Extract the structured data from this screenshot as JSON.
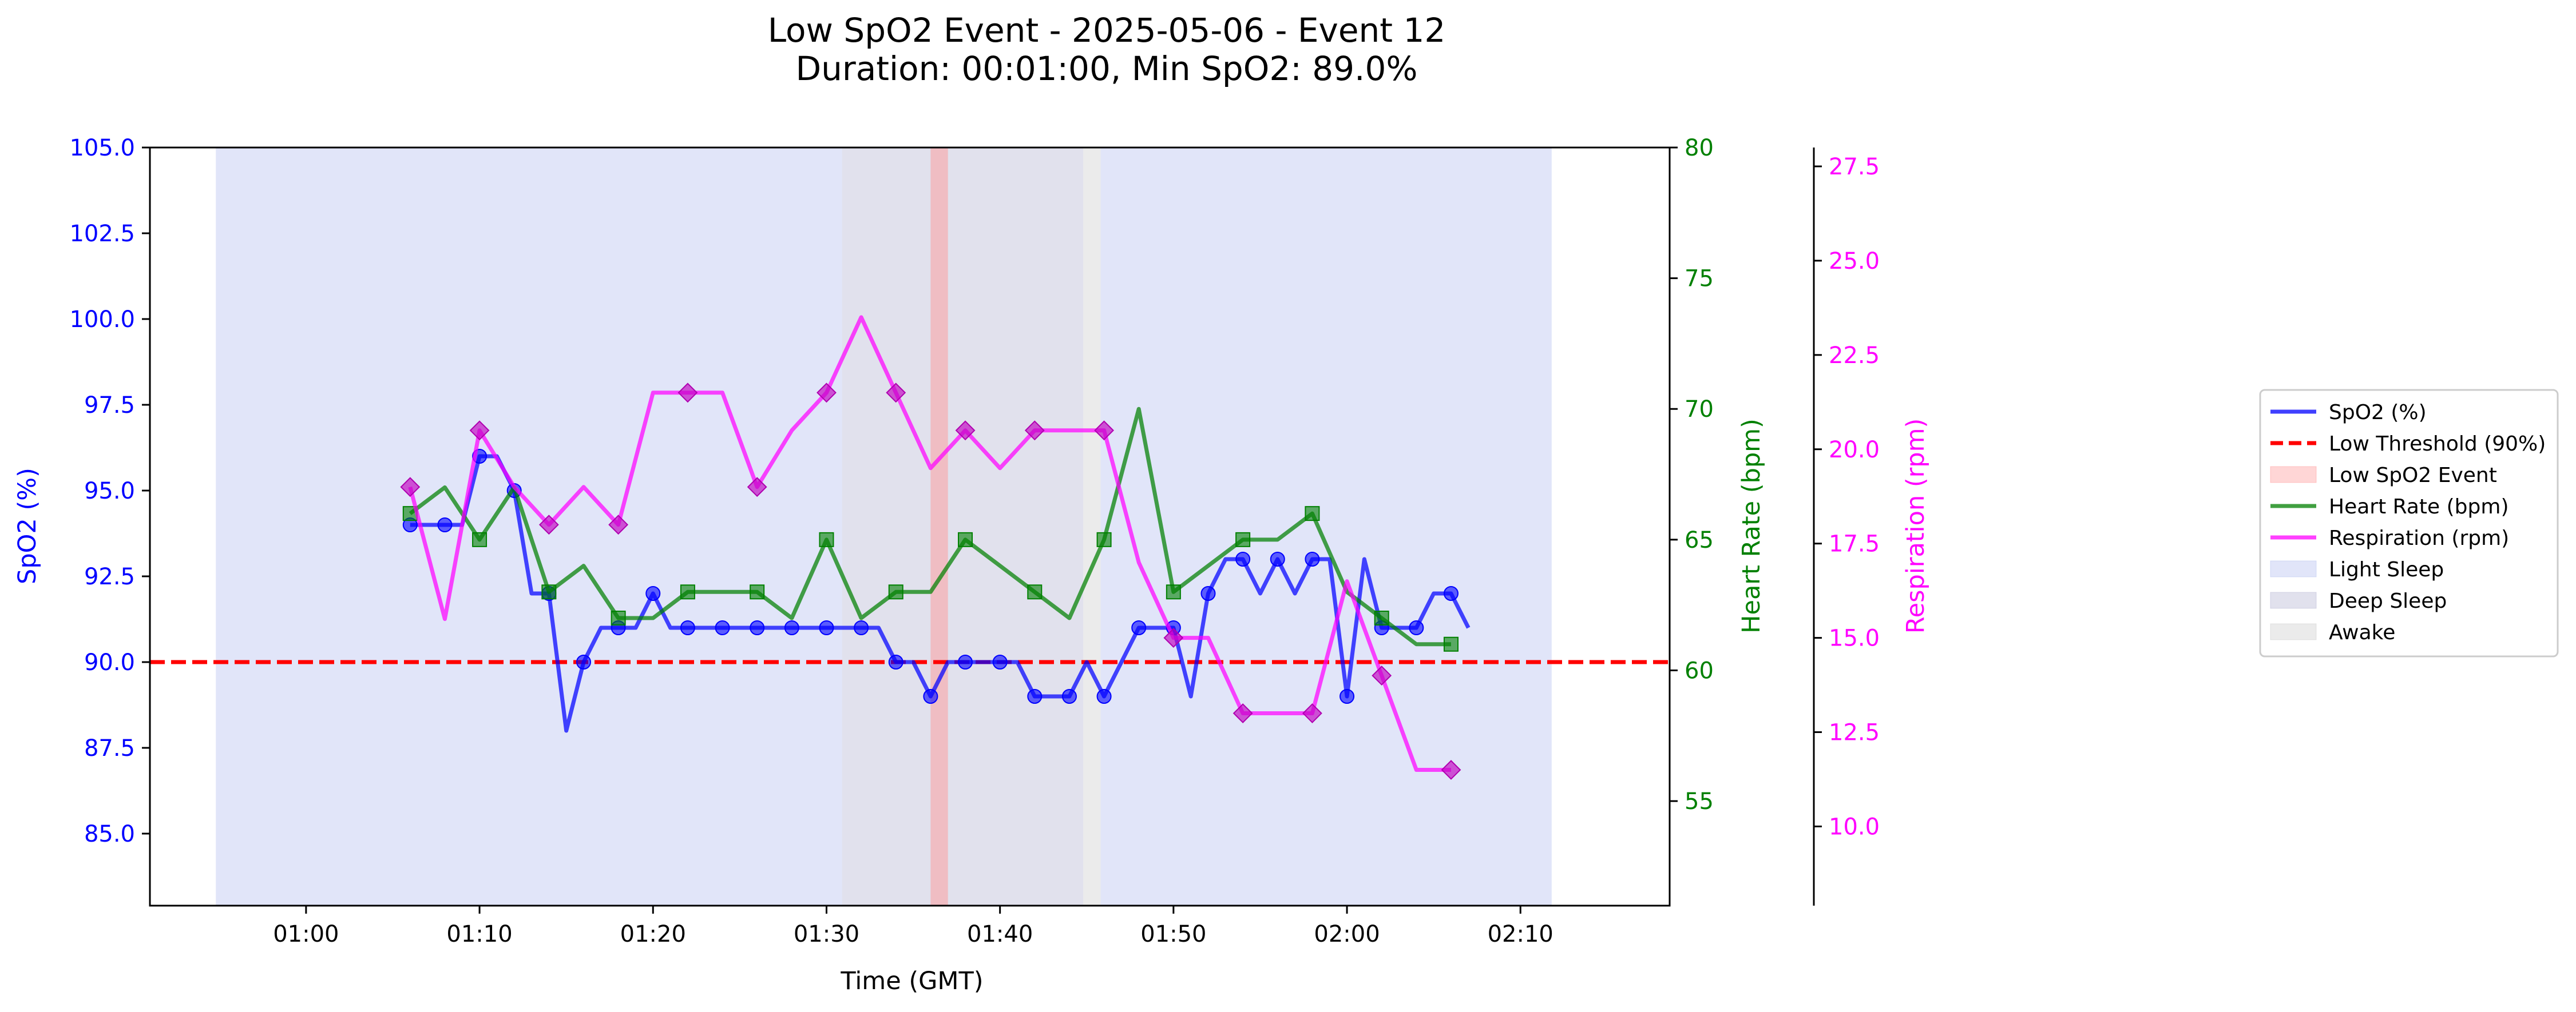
{
  "chart_data": {
    "type": "line",
    "title": "Low SpO2 Event - 2025-05-06 - Event 12",
    "subtitle": "Duration: 00:01:00, Min SpO2: 89.0%",
    "xlabel": "Time (GMT)",
    "x_ticks": [
      "01:00",
      "01:10",
      "01:20",
      "01:30",
      "01:40",
      "01:50",
      "02:00",
      "02:10"
    ],
    "x_tick_minutes": [
      60,
      70,
      80,
      90,
      100,
      110,
      120,
      130
    ],
    "xlim_minutes": [
      51,
      138.6
    ],
    "axes": {
      "spo2": {
        "label": "SpO2 (%)",
        "color": "#0000ff",
        "ylim": [
          82.9,
          105
        ],
        "ticks": [
          85.0,
          87.5,
          90.0,
          92.5,
          95.0,
          97.5,
          100.0,
          102.5,
          105.0
        ],
        "tick_labels": [
          "85.0",
          "87.5",
          "90.0",
          "92.5",
          "95.0",
          "97.5",
          "100.0",
          "102.5",
          "105.0"
        ]
      },
      "heart_rate": {
        "label": "Heart Rate (bpm)",
        "color": "#008000",
        "ylim": [
          51,
          80
        ],
        "ticks": [
          55,
          60,
          65,
          70,
          75,
          80
        ],
        "tick_labels": [
          "55",
          "60",
          "65",
          "70",
          "75",
          "80"
        ]
      },
      "respiration": {
        "label": "Respiration (rpm)",
        "color": "#ff00ff",
        "ylim": [
          7.9,
          28.0
        ],
        "ticks": [
          10.0,
          12.5,
          15.0,
          17.5,
          20.0,
          22.5,
          25.0,
          27.5
        ],
        "tick_labels": [
          "10.0",
          "12.5",
          "15.0",
          "17.5",
          "20.0",
          "22.5",
          "25.0",
          "27.5"
        ]
      }
    },
    "series": [
      {
        "key": "spo2",
        "name": "SpO2 (%)",
        "axis": "spo2",
        "color": "#0000ff",
        "x": [
          66,
          67,
          68,
          69,
          70,
          71,
          72,
          73,
          74,
          75,
          76,
          77,
          78,
          79,
          80,
          81,
          82,
          83,
          84,
          85,
          86,
          87,
          88,
          89,
          90,
          91,
          92,
          93,
          94,
          95,
          96,
          97,
          98,
          99,
          100,
          101,
          102,
          103,
          104,
          105,
          106,
          107,
          108,
          109,
          110,
          111,
          112,
          113,
          114,
          115,
          116,
          117,
          118,
          119,
          120,
          121,
          122,
          123,
          124,
          125,
          126,
          127
        ],
        "y": [
          94,
          94,
          94,
          94,
          96,
          96,
          95,
          92,
          92,
          88,
          90,
          91,
          91,
          91,
          92,
          91,
          91,
          91,
          91,
          91,
          91,
          91,
          91,
          91,
          91,
          91,
          91,
          91,
          90,
          90,
          89,
          90,
          90,
          90,
          90,
          90,
          89,
          89,
          89,
          90,
          89,
          90,
          91,
          91,
          91,
          89,
          92,
          93,
          93,
          92,
          93,
          92,
          93,
          93,
          89,
          93,
          91,
          91,
          91,
          92,
          92,
          91
        ],
        "markers_x": [
          66,
          68,
          70,
          72,
          74,
          76,
          78,
          80,
          82,
          84,
          86,
          88,
          90,
          92,
          94,
          96,
          98,
          100,
          102,
          104,
          106,
          108,
          110,
          112,
          114,
          116,
          118,
          120,
          122,
          124,
          126
        ]
      },
      {
        "key": "heart_rate",
        "name": "Heart Rate (bpm)",
        "axis": "heart_rate",
        "color": "#008000",
        "x": [
          66,
          68,
          70,
          72,
          74,
          76,
          78,
          80,
          82,
          84,
          86,
          88,
          90,
          92,
          94,
          96,
          98,
          100,
          102,
          104,
          106,
          108,
          110,
          112,
          114,
          116,
          118,
          120,
          122,
          124,
          126
        ],
        "y": [
          66,
          67,
          65,
          67,
          63,
          64,
          62,
          62,
          63,
          63,
          63,
          62,
          65,
          62,
          63,
          63,
          65,
          64,
          63,
          62,
          65,
          70,
          63,
          64,
          65,
          65,
          66,
          63,
          62,
          61,
          61
        ],
        "markers_x": [
          66,
          70,
          74,
          78,
          82,
          86,
          90,
          94,
          98,
          102,
          106,
          110,
          114,
          118,
          122,
          126
        ]
      },
      {
        "key": "respiration",
        "name": "Respiration (rpm)",
        "axis": "respiration",
        "color": "#ff00ff",
        "x": [
          66,
          68,
          70,
          72,
          74,
          76,
          78,
          80,
          82,
          84,
          86,
          88,
          90,
          92,
          94,
          96,
          98,
          100,
          102,
          104,
          106,
          108,
          110,
          112,
          114,
          116,
          118,
          120,
          122,
          124,
          126
        ],
        "y": [
          19,
          15.5,
          20.5,
          19,
          18,
          19,
          18,
          21.5,
          21.5,
          21.5,
          19,
          20.5,
          21.5,
          23.5,
          21.5,
          19.5,
          20.5,
          19.5,
          20.5,
          20.5,
          20.5,
          17,
          15,
          15,
          13,
          13,
          13,
          16.5,
          14,
          11.5,
          11.5
        ],
        "markers_x": [
          66,
          70,
          74,
          78,
          82,
          86,
          90,
          94,
          98,
          102,
          106,
          110,
          114,
          118,
          122,
          126
        ]
      }
    ],
    "threshold": {
      "name": "Low Threshold (90%)",
      "axis": "spo2",
      "value": 90,
      "color": "#ff0000"
    },
    "event_span": {
      "name": "Low SpO2 Event",
      "x_start": 96,
      "x_end": 97,
      "color": "#ff9999"
    },
    "sleep_stages": [
      {
        "stage": "Light Sleep",
        "x_start": 54.8,
        "x_end": 90.9
      },
      {
        "stage": "Deep Sleep",
        "x_start": 90.9,
        "x_end": 104.8
      },
      {
        "stage": "Awake",
        "x_start": 104.8,
        "x_end": 105.8
      },
      {
        "stage": "Light Sleep",
        "x_start": 105.8,
        "x_end": 131.8
      }
    ],
    "stage_colors": {
      "Light Sleep": "#b3bff0",
      "Deep Sleep": "#b3b3d1",
      "Awake": "#cccccc"
    },
    "legend": {
      "placement": "right",
      "entries": [
        {
          "label": "SpO2 (%)",
          "kind": "line",
          "color": "#0000ff"
        },
        {
          "label": "Low Threshold (90%)",
          "kind": "dashed",
          "color": "#ff0000"
        },
        {
          "label": "Low SpO2 Event",
          "kind": "patch",
          "color": "#ff9999"
        },
        {
          "label": "Heart Rate (bpm)",
          "kind": "line",
          "color": "#008000"
        },
        {
          "label": "Respiration (rpm)",
          "kind": "line",
          "color": "#ff00ff"
        },
        {
          "label": "Light Sleep",
          "kind": "patch",
          "color": "#b3bff0"
        },
        {
          "label": "Deep Sleep",
          "kind": "patch",
          "color": "#b3b3d1"
        },
        {
          "label": "Awake",
          "kind": "patch",
          "color": "#cccccc"
        }
      ]
    },
    "grid": false
  }
}
